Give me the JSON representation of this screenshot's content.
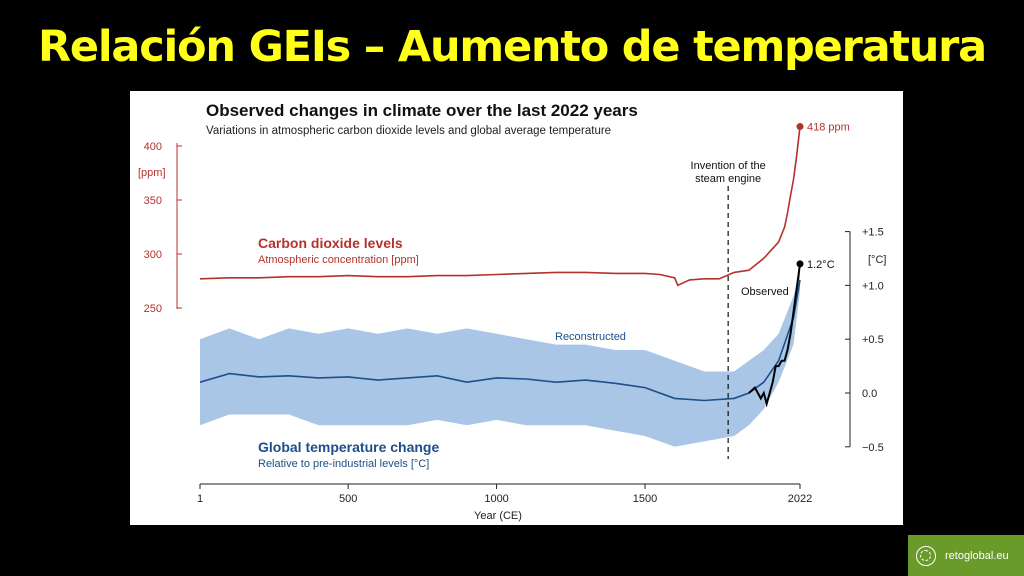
{
  "slide": {
    "title": "Relación GEIs – Aumento de temperatura",
    "badge_text": "retoglobal.eu",
    "accent_color": "#ffff1a",
    "badge_color": "#6a9a2a"
  },
  "chart_data": {
    "type": "line",
    "title": "Observed changes in climate over the last 2022 years",
    "subtitle": "Variations in atmospheric carbon dioxide levels and global average temperature",
    "xlabel": "Year (CE)",
    "xlim": [
      1,
      2022
    ],
    "x_ticks": [
      1,
      500,
      1000,
      1500,
      2022
    ],
    "co2_axis": {
      "unit": "[ppm]",
      "ylim": [
        230,
        420
      ],
      "ticks": [
        250,
        300,
        350,
        400
      ]
    },
    "temp_axis": {
      "unit": "[°C]",
      "ylim": [
        -0.5,
        1.5
      ],
      "ticks": [
        -0.5,
        0.0,
        0.5,
        1.0,
        1.5
      ],
      "tick_labels": [
        "−0.5",
        "0.0",
        "+0.5",
        "+1.0",
        "+1.5"
      ]
    },
    "annotation": {
      "x": 1780,
      "label_lines": [
        "Invention of the",
        "steam engine"
      ]
    },
    "series": [
      {
        "name": "Carbon dioxide levels",
        "sublabel": "Atmospheric concentration [ppm]",
        "axis": "co2",
        "color": "#b5322c",
        "x": [
          1,
          100,
          200,
          300,
          400,
          500,
          600,
          700,
          800,
          900,
          1000,
          1100,
          1200,
          1300,
          1400,
          1500,
          1550,
          1600,
          1610,
          1650,
          1700,
          1750,
          1800,
          1850,
          1900,
          1920,
          1950,
          1970,
          1980,
          1990,
          2000,
          2010,
          2022
        ],
        "values": [
          277,
          278,
          278,
          279,
          279,
          280,
          279,
          279,
          280,
          280,
          281,
          282,
          283,
          283,
          282,
          282,
          281,
          278,
          271,
          276,
          277,
          277,
          283,
          285,
          296,
          302,
          311,
          325,
          338,
          354,
          369,
          389,
          418
        ],
        "end_label": "418 ppm"
      },
      {
        "name": "Global temperature change",
        "sublabel": "Relative to pre-industrial levels [°C]",
        "axis": "temp",
        "color": "#1d4f8a",
        "band_color": "#a9c6e6",
        "band_label": "Reconstructed",
        "x": [
          1,
          100,
          200,
          300,
          400,
          500,
          600,
          700,
          800,
          900,
          1000,
          1100,
          1200,
          1300,
          1400,
          1500,
          1600,
          1700,
          1800,
          1850,
          1900,
          1950,
          2000,
          2022
        ],
        "values": [
          0.1,
          0.18,
          0.15,
          0.16,
          0.14,
          0.15,
          0.12,
          0.14,
          0.16,
          0.1,
          0.14,
          0.13,
          0.1,
          0.12,
          0.09,
          0.05,
          -0.05,
          -0.07,
          -0.05,
          0.0,
          0.1,
          0.3,
          0.7,
          1.05
        ],
        "band_low": [
          -0.3,
          -0.2,
          -0.2,
          -0.2,
          -0.3,
          -0.3,
          -0.3,
          -0.3,
          -0.25,
          -0.3,
          -0.25,
          -0.3,
          -0.3,
          -0.3,
          -0.35,
          -0.4,
          -0.5,
          -0.45,
          -0.4,
          -0.3,
          -0.15,
          0.1,
          0.45,
          0.95
        ],
        "band_high": [
          0.5,
          0.6,
          0.5,
          0.6,
          0.55,
          0.6,
          0.55,
          0.6,
          0.55,
          0.6,
          0.55,
          0.5,
          0.45,
          0.45,
          0.4,
          0.4,
          0.3,
          0.2,
          0.2,
          0.3,
          0.4,
          0.55,
          0.9,
          1.15
        ]
      },
      {
        "name": "Observed",
        "axis": "temp",
        "color": "#000000",
        "x": [
          1850,
          1870,
          1890,
          1900,
          1910,
          1920,
          1930,
          1940,
          1950,
          1960,
          1970,
          1980,
          1990,
          2000,
          2010,
          2022
        ],
        "values": [
          0.0,
          0.05,
          -0.05,
          0.0,
          -0.1,
          0.0,
          0.1,
          0.25,
          0.25,
          0.3,
          0.3,
          0.4,
          0.55,
          0.75,
          0.95,
          1.2
        ],
        "end_label": "1.2°C"
      }
    ]
  }
}
